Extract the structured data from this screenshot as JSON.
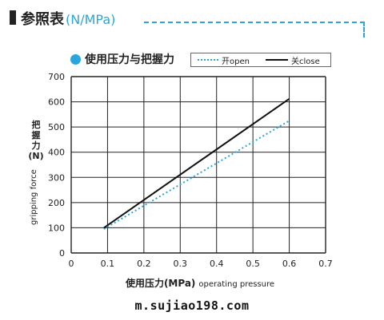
{
  "header": {
    "title": "参照表",
    "unit": "(N/MPa)"
  },
  "colors": {
    "accent": "#29a6dc",
    "close_line": "#111111",
    "grid": "#222222"
  },
  "chart_data": {
    "type": "line",
    "subtitle": "使用压力与把握力",
    "xlabel_zh": "使用压力(MPa)",
    "xlabel_en": "operating pressure",
    "ylabel_zh": "把握力",
    "ylabel_paren": "(N)",
    "ylabel_en": "gripping force",
    "xlim": [
      0,
      0.7
    ],
    "ylim": [
      0,
      700
    ],
    "x_ticks": [
      "0",
      "0.1",
      "0.2",
      "0.3",
      "0.4",
      "0.5",
      "0.6",
      "0.7"
    ],
    "y_ticks": [
      "0",
      "100",
      "200",
      "300",
      "400",
      "500",
      "600",
      "700"
    ],
    "grid": true,
    "legend_position": "top-right",
    "series": [
      {
        "name": "开open",
        "style": "dotted",
        "color": "#29a6dc",
        "x": [
          0.09,
          0.6
        ],
        "y": [
          95,
          525
        ]
      },
      {
        "name": "关close",
        "style": "solid",
        "color": "#111111",
        "x": [
          0.09,
          0.6
        ],
        "y": [
          100,
          612
        ]
      }
    ]
  },
  "watermark": "m.sujiao198.com"
}
